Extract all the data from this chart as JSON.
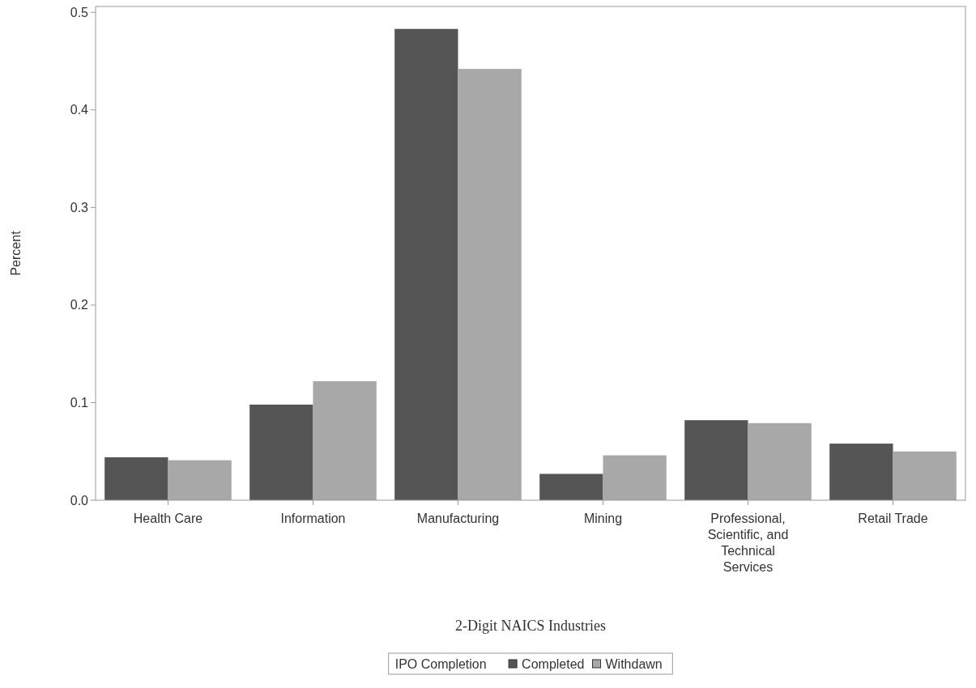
{
  "chart_data": {
    "type": "bar",
    "xlabel": "2-Digit NAICS Industries",
    "ylabel": "Percent",
    "legend_title": "IPO Completion",
    "categories": [
      "Health Care",
      "Information",
      "Manufacturing",
      "Mining",
      "Professional, Scientific, and Technical Services",
      "Retail Trade"
    ],
    "series": [
      {
        "name": "Completed",
        "color": "#555555",
        "values": [
          0.044,
          0.098,
          0.483,
          0.027,
          0.082,
          0.058
        ]
      },
      {
        "name": "Withdawn",
        "color": "#a8a8a8",
        "values": [
          0.041,
          0.122,
          0.442,
          0.046,
          0.079,
          0.05
        ]
      }
    ],
    "ylim": [
      0,
      0.506
    ],
    "yticks": [
      {
        "value": 0,
        "label": "0.0"
      },
      0.1,
      0.2,
      0.3,
      0.4,
      0.5
    ],
    "grid": false,
    "legend": "bottom"
  }
}
